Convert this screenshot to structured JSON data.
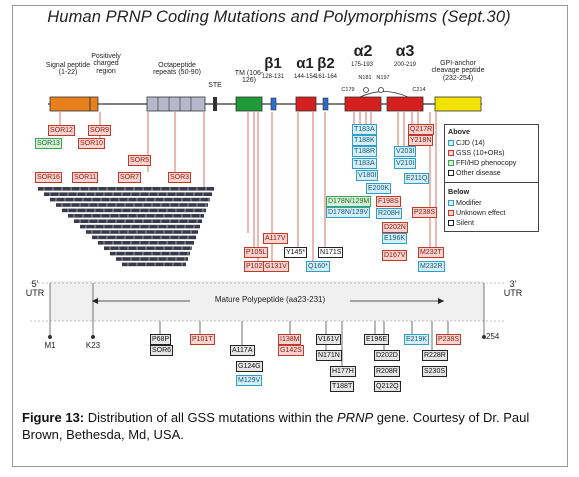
{
  "figure": {
    "title": "Human PRNP Coding Mutations and Polymorphisms (Sept.30)",
    "caption_label": "Figure 13:",
    "caption_text_1": " Distribution of all GSS mutations within the ",
    "caption_gene": "PRNP",
    "caption_text_2": " gene. Courtesy of Dr. Paul Brown, Bethesda, Md, USA."
  },
  "domains": {
    "signal": "Signal peptide (1-22)",
    "positive": "Positively charged region",
    "octa": "Octapeptide repeats (50-90)",
    "ste": "STE",
    "tm": "TM (106-126)",
    "beta1": "β1",
    "beta1_range": "128-131",
    "alpha1": "α1",
    "alpha1_range": "144-154",
    "beta2": "β2",
    "beta2_range": "161-164",
    "alpha2": "α2",
    "alpha2_range": "175-193",
    "alpha3": "α3",
    "alpha3_range": "200-219",
    "gpi": "GPI-anchor cleavage peptide (232-254)",
    "c179": "C179",
    "c214": "C214",
    "n181": "N181",
    "n197": "N197"
  },
  "legend": {
    "above_title": "Above",
    "cjd": "CJD (14)",
    "gss": "GSS (10+ORs)",
    "ffi": "FFI/HD phenocopy",
    "other": "Other disease",
    "below_title": "Below",
    "modifier": "Modifier",
    "unknown": "Unknown effect",
    "silent": "Silent"
  },
  "track": {
    "utr5": "5' UTR",
    "utr3": "3' UTR",
    "mature": "Mature Polypeptide (aa23-231)",
    "m1": "M1",
    "k23": "K23",
    "end": "254"
  },
  "colors": {
    "signal": "#e8801e",
    "octa": "#b8b8cc",
    "tm": "#1f9a3a",
    "beta": "#2a6fd0",
    "helix": "#d62020",
    "gpi": "#f2e200",
    "backbone": "#555555"
  },
  "mutations_top": [
    {
      "text": "SOR12",
      "color": "red"
    },
    {
      "text": "SOR9",
      "color": "red"
    },
    {
      "text": "SOR13",
      "color": "green"
    },
    {
      "text": "SOR10",
      "color": "red"
    },
    {
      "text": "SOR5",
      "color": "red"
    },
    {
      "text": "SOR16",
      "color": "red"
    },
    {
      "text": "SOR11",
      "color": "red"
    },
    {
      "text": "SOR7",
      "color": "red"
    },
    {
      "text": "SOR3",
      "color": "red"
    },
    {
      "text": "A117V",
      "color": "red"
    },
    {
      "text": "P105L",
      "color": "red"
    },
    {
      "text": "P102L",
      "color": "red"
    },
    {
      "text": "G131V",
      "color": "red"
    },
    {
      "text": "Y145*",
      "color": "black"
    },
    {
      "text": "Q160*",
      "color": "blue"
    },
    {
      "text": "N171S",
      "color": "black"
    },
    {
      "text": "T183A",
      "color": "blue"
    },
    {
      "text": "T188K",
      "color": "blue"
    },
    {
      "text": "T188R",
      "color": "blue"
    },
    {
      "text": "T183A",
      "color": "blue"
    },
    {
      "text": "V180I",
      "color": "blue"
    },
    {
      "text": "E200K",
      "color": "blue"
    },
    {
      "text": "D178N/129M",
      "color": "green"
    },
    {
      "text": "D178N/129V",
      "color": "blue"
    },
    {
      "text": "F198S",
      "color": "red"
    },
    {
      "text": "V203I",
      "color": "blue"
    },
    {
      "text": "R208H",
      "color": "blue"
    },
    {
      "text": "V210I",
      "color": "blue"
    },
    {
      "text": "Q217R",
      "color": "red"
    },
    {
      "text": "Y218N",
      "color": "red"
    },
    {
      "text": "E211Q",
      "color": "blue"
    },
    {
      "text": "M232T",
      "color": "red"
    },
    {
      "text": "M232R",
      "color": "blue"
    },
    {
      "text": "P238S",
      "color": "red"
    },
    {
      "text": "D202N",
      "color": "red"
    },
    {
      "text": "E196K",
      "color": "blue"
    },
    {
      "text": "D167V",
      "color": "red"
    }
  ],
  "mutations_bottom": [
    {
      "text": "P68P",
      "color": "gray"
    },
    {
      "text": "SOR6",
      "color": "gray"
    },
    {
      "text": "P101T",
      "color": "red"
    },
    {
      "text": "A117A",
      "color": "gray"
    },
    {
      "text": "G124G",
      "color": "gray"
    },
    {
      "text": "M129V",
      "color": "blue"
    },
    {
      "text": "I138M",
      "color": "red"
    },
    {
      "text": "G142S",
      "color": "red"
    },
    {
      "text": "V161V",
      "color": "gray"
    },
    {
      "text": "N171N",
      "color": "gray"
    },
    {
      "text": "H177H",
      "color": "gray"
    },
    {
      "text": "T188T",
      "color": "gray"
    },
    {
      "text": "E196E",
      "color": "gray"
    },
    {
      "text": "D202D",
      "color": "gray"
    },
    {
      "text": "R208R",
      "color": "gray"
    },
    {
      "text": "E219K",
      "color": "blue"
    },
    {
      "text": "Q212Q",
      "color": "gray"
    },
    {
      "text": "P238S",
      "color": "red"
    },
    {
      "text": "R228R",
      "color": "gray"
    },
    {
      "text": "S230S",
      "color": "gray"
    }
  ]
}
